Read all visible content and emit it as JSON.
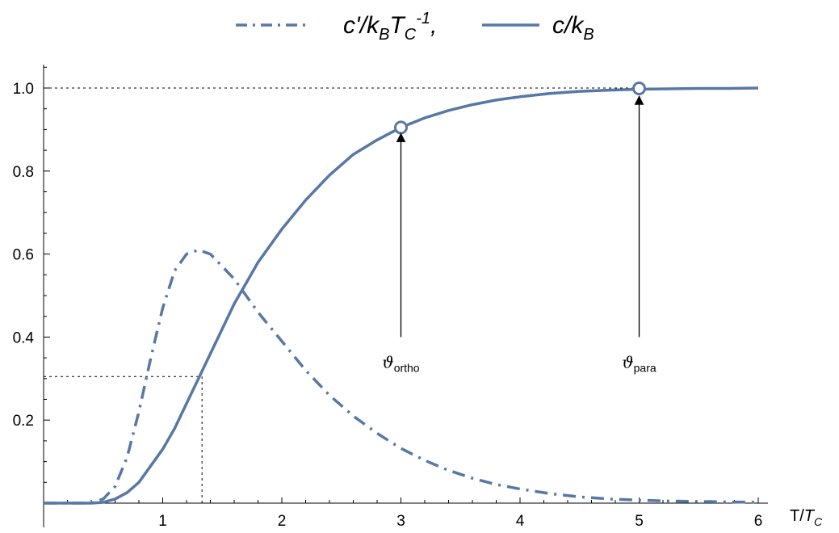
{
  "chart_data": {
    "type": "line",
    "title": "",
    "xlabel": "T/T_C",
    "xlabel_main": "T/",
    "xlabel_T": "T",
    "xlabel_sub": "C",
    "ylabel": "",
    "xlim": [
      0,
      6
    ],
    "ylim": [
      0,
      1
    ],
    "x_ticks": [
      1,
      2,
      3,
      4,
      5,
      6
    ],
    "y_ticks": [
      0.2,
      0.4,
      0.6,
      0.8,
      1.0
    ],
    "x_tick_labels": [
      "1",
      "2",
      "3",
      "4",
      "5",
      "6"
    ],
    "y_tick_labels": [
      "0.2",
      "0.4",
      "0.6",
      "0.8",
      "1.0"
    ],
    "color": "#5778a4",
    "legend": {
      "position": "top-center",
      "entries": [
        {
          "series": "dashdot",
          "label": "c'/k_B T_C^-1,"
        },
        {
          "series": "solid",
          "label": "c/k_B"
        }
      ]
    },
    "series": [
      {
        "name": "c'/k_B T_C^-1",
        "style": "dash-dot",
        "x": [
          0.0,
          0.2,
          0.4,
          0.5,
          0.6,
          0.7,
          0.8,
          0.9,
          1.0,
          1.1,
          1.2,
          1.3,
          1.4,
          1.5,
          1.6,
          1.8,
          2.0,
          2.2,
          2.4,
          2.6,
          2.8,
          3.0,
          3.2,
          3.4,
          3.6,
          3.8,
          4.0,
          4.25,
          4.5,
          4.75,
          5.0,
          5.25,
          5.5,
          5.75,
          6.0
        ],
        "values": [
          0.0,
          0.0,
          0.0,
          0.01,
          0.04,
          0.11,
          0.22,
          0.35,
          0.47,
          0.56,
          0.6,
          0.61,
          0.6,
          0.57,
          0.54,
          0.46,
          0.39,
          0.32,
          0.26,
          0.21,
          0.168,
          0.132,
          0.103,
          0.079,
          0.06,
          0.045,
          0.034,
          0.023,
          0.015,
          0.01,
          0.007,
          0.005,
          0.004,
          0.003,
          0.002
        ]
      },
      {
        "name": "c/k_B",
        "style": "solid",
        "x": [
          0.0,
          0.2,
          0.4,
          0.5,
          0.6,
          0.7,
          0.8,
          0.9,
          1.0,
          1.1,
          1.2,
          1.3,
          1.4,
          1.5,
          1.6,
          1.7,
          1.8,
          2.0,
          2.2,
          2.4,
          2.6,
          2.8,
          3.0,
          3.2,
          3.4,
          3.6,
          3.8,
          4.0,
          4.25,
          4.5,
          4.75,
          5.0,
          5.25,
          5.5,
          5.75,
          6.0
        ],
        "values": [
          0.0,
          0.0,
          0.0,
          0.002,
          0.01,
          0.025,
          0.05,
          0.09,
          0.13,
          0.18,
          0.24,
          0.3,
          0.36,
          0.42,
          0.48,
          0.53,
          0.58,
          0.66,
          0.73,
          0.79,
          0.84,
          0.875,
          0.905,
          0.928,
          0.946,
          0.96,
          0.971,
          0.979,
          0.987,
          0.992,
          0.995,
          0.997,
          0.998,
          0.999,
          0.999,
          1.0
        ]
      }
    ],
    "reference_lines": [
      {
        "kind": "horizontal",
        "y": 1.0
      },
      {
        "kind": "horizontal",
        "y": 0.305,
        "x_to": 1.33
      },
      {
        "kind": "vertical",
        "x": 1.33,
        "y_to": 0.305
      }
    ],
    "markers": [
      {
        "x": 3.0,
        "y": 0.905
      },
      {
        "x": 5.0,
        "y": 0.999
      }
    ],
    "annotations": [
      {
        "x": 3.0,
        "y_from": 0.4,
        "y_to": 0.89,
        "symbol": "ϑ",
        "sub": "ortho"
      },
      {
        "x": 5.0,
        "y_from": 0.4,
        "y_to": 0.98,
        "symbol": "ϑ",
        "sub": "para"
      }
    ]
  }
}
